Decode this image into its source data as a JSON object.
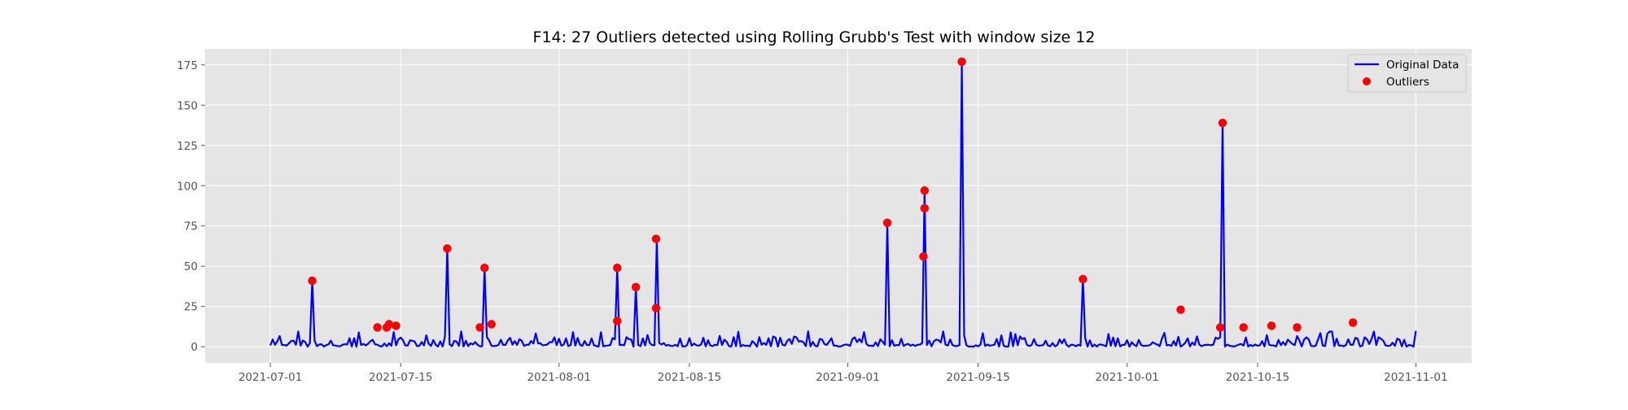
{
  "chart_data": {
    "type": "line",
    "title": "F14: 27 Outliers detected using Rolling Grubb's Test with window size 12",
    "xlabel": "",
    "ylabel": "",
    "x_range": [
      "2021-06-24",
      "2021-11-07"
    ],
    "ylim": [
      -10,
      185
    ],
    "y_ticks": [
      0,
      25,
      50,
      75,
      100,
      125,
      150,
      175
    ],
    "x_ticks": [
      "2021-07-01",
      "2021-07-15",
      "2021-08-01",
      "2021-08-15",
      "2021-09-01",
      "2021-09-15",
      "2021-10-01",
      "2021-10-15",
      "2021-11-01"
    ],
    "grid": true,
    "legend_position": "top-right",
    "legend": [
      {
        "label": "Original Data",
        "marker": "line",
        "color": "#0000ff"
      },
      {
        "label": "Outliers",
        "marker": "dot",
        "color": "#ff0000"
      }
    ],
    "series": [
      {
        "name": "Original Data",
        "color": "#0000ff",
        "kind": "line",
        "note": "noisy baseline 0-10 between 2021-07-01 and 2021-11-01; spike peaks listed below",
        "x_start": "2021-07-01",
        "x_end": "2021-11-01",
        "spikes": [
          {
            "x": "2021-07-05 12:00",
            "y": 41
          },
          {
            "x": "2021-07-20 00:00",
            "y": 61
          },
          {
            "x": "2021-07-24 00:00",
            "y": 49
          },
          {
            "x": "2021-08-07 06:00",
            "y": 49
          },
          {
            "x": "2021-08-09 06:00",
            "y": 37
          },
          {
            "x": "2021-08-11 10:00",
            "y": 67
          },
          {
            "x": "2021-09-05 06:00",
            "y": 77
          },
          {
            "x": "2021-09-09 06:00",
            "y": 97
          },
          {
            "x": "2021-09-13 06:00",
            "y": 177
          },
          {
            "x": "2021-09-26 06:00",
            "y": 42
          },
          {
            "x": "2021-10-11 06:00",
            "y": 139
          }
        ]
      },
      {
        "name": "Outliers",
        "color": "#ff0000",
        "kind": "scatter",
        "points": [
          {
            "x": "2021-07-05 12:00",
            "y": 41
          },
          {
            "x": "2021-07-12 12:00",
            "y": 12
          },
          {
            "x": "2021-07-13 12:00",
            "y": 12
          },
          {
            "x": "2021-07-13 18:00",
            "y": 14
          },
          {
            "x": "2021-07-14 12:00",
            "y": 13
          },
          {
            "x": "2021-07-20 00:00",
            "y": 61
          },
          {
            "x": "2021-07-23 12:00",
            "y": 12
          },
          {
            "x": "2021-07-24 00:00",
            "y": 49
          },
          {
            "x": "2021-07-24 18:00",
            "y": 14
          },
          {
            "x": "2021-08-07 06:00",
            "y": 49
          },
          {
            "x": "2021-08-07 06:00",
            "y": 16
          },
          {
            "x": "2021-08-09 06:00",
            "y": 37
          },
          {
            "x": "2021-08-11 10:00",
            "y": 67
          },
          {
            "x": "2021-08-11 10:00",
            "y": 24
          },
          {
            "x": "2021-09-05 06:00",
            "y": 77
          },
          {
            "x": "2021-09-09 06:00",
            "y": 97
          },
          {
            "x": "2021-09-09 06:00",
            "y": 86
          },
          {
            "x": "2021-09-09 03:00",
            "y": 56
          },
          {
            "x": "2021-09-13 06:00",
            "y": 177
          },
          {
            "x": "2021-09-26 06:00",
            "y": 42
          },
          {
            "x": "2021-10-06 18:00",
            "y": 23
          },
          {
            "x": "2021-10-11 00:00",
            "y": 12
          },
          {
            "x": "2021-10-11 06:00",
            "y": 139
          },
          {
            "x": "2021-10-13 12:00",
            "y": 12
          },
          {
            "x": "2021-10-16 12:00",
            "y": 13
          },
          {
            "x": "2021-10-19 06:00",
            "y": 12
          },
          {
            "x": "2021-10-25 06:00",
            "y": 15
          }
        ]
      }
    ]
  }
}
